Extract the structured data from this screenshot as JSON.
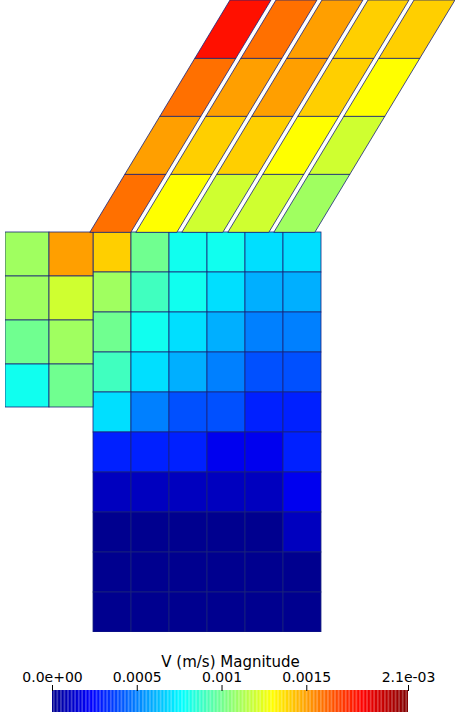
{
  "chart_data": {
    "type": "heatmap",
    "tick_labels": false,
    "colorbar": {
      "title": "V (m/s) Magnitude",
      "range": [
        0,
        0.0021
      ],
      "ticks": [
        {
          "value": 0,
          "label": "0.0e+00"
        },
        0.0005,
        0.001,
        0.0015,
        {
          "value": 0.0021,
          "label": "2.1e-03"
        }
      ]
    },
    "boxes": [
      {
        "x": [
          88,
          126,
          164,
          202,
          240,
          278,
          316
        ],
        "y": [
          400,
          360,
          320,
          280,
          240,
          200,
          160,
          120,
          80,
          40,
          0
        ],
        "values": [
          [
            0.0014,
            0.001,
            0.0008,
            0.0008,
            0.0007,
            0.0007
          ],
          [
            0.0011,
            0.0009,
            0.0008,
            0.0007,
            0.0006,
            0.0006
          ],
          [
            0.001,
            0.0008,
            0.0007,
            0.0006,
            0.0005,
            0.0005
          ],
          [
            0.0009,
            0.0007,
            0.0006,
            0.0005,
            0.0004,
            0.0004
          ],
          [
            0.0007,
            0.0005,
            0.0004,
            0.0004,
            0.0003,
            0.0003
          ],
          [
            0.0003,
            0.0003,
            0.0003,
            0.0002,
            0.0002,
            0.0003
          ],
          [
            0.0001,
            0.0001,
            0.0001,
            0.0001,
            0.0001,
            0.0002
          ],
          [
            0,
            0,
            0,
            0,
            0,
            0.0001
          ],
          [
            0,
            0,
            0,
            0,
            0,
            0
          ],
          [
            0,
            0,
            0,
            0,
            0,
            0
          ]
        ]
      },
      {
        "x": [
          0,
          44,
          88
        ],
        "y": [
          400,
          356,
          312,
          268,
          225
        ],
        "values": [
          [
            0.0011,
            0.0015
          ],
          [
            0.0011,
            0.0012
          ],
          [
            0.001,
            0.0011
          ],
          [
            0.0008,
            0.001
          ]
        ]
      }
    ],
    "channels": {
      "x": [
        85,
        131,
        177,
        223,
        269
      ],
      "width": 41,
      "shift": 140,
      "y": [
        400,
        458,
        516,
        574,
        632
      ],
      "values": [
        [
          0.0016,
          0.0015,
          0.0016,
          0.0018
        ],
        [
          0.0013,
          0.0014,
          0.0015,
          0.0016
        ],
        [
          0.0012,
          0.0014,
          0.0015,
          0.0015
        ],
        [
          0.0012,
          0.0013,
          0.0014,
          0.0014
        ],
        [
          0.0011,
          0.0012,
          0.0013,
          0.0014
        ]
      ]
    }
  }
}
